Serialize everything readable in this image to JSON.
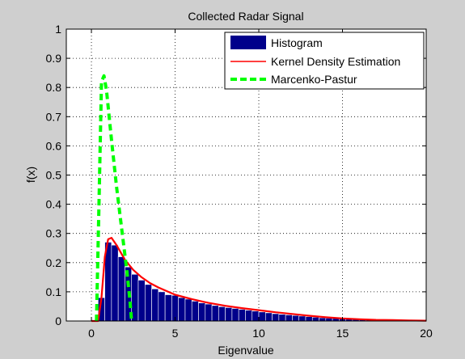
{
  "chart_data": {
    "type": "bar",
    "title": "Collected Radar Signal",
    "xlabel": "Eigenvalue",
    "ylabel": "f(x)",
    "xlim": [
      -1.5,
      20
    ],
    "ylim": [
      0,
      1
    ],
    "x_ticks": [
      0,
      5,
      10,
      15,
      20
    ],
    "x_tick_labels": [
      "0",
      "5",
      "10",
      "15",
      "20"
    ],
    "y_ticks": [
      0,
      0.1,
      0.2,
      0.3,
      0.4,
      0.5,
      0.6,
      0.7,
      0.8,
      0.9,
      1
    ],
    "y_tick_labels": [
      "0",
      "0.1",
      "0.2",
      "0.3",
      "0.4",
      "0.5",
      "0.6",
      "0.7",
      "0.8",
      "0.9",
      "1"
    ],
    "grid": true,
    "legend_position": "top-right",
    "series": [
      {
        "name": "Histogram",
        "kind": "histogram",
        "color": "#00008b",
        "bin_width": 0.4,
        "x": [
          0.6,
          1.0,
          1.4,
          1.8,
          2.2,
          2.6,
          3.0,
          3.4,
          3.8,
          4.2,
          4.6,
          5.0,
          5.4,
          5.8,
          6.2,
          6.6,
          7.0,
          7.4,
          7.8,
          8.2,
          8.6,
          9.0,
          9.4,
          9.8,
          10.2,
          10.6,
          11.0,
          11.4,
          11.8,
          12.2,
          12.6,
          13.0,
          13.4,
          13.8,
          14.2,
          14.6,
          15.0,
          15.4,
          15.8,
          16.2,
          16.6,
          17.0,
          17.4,
          17.8,
          18.2,
          18.6,
          19.0,
          19.4,
          19.8
        ],
        "values": [
          0.08,
          0.27,
          0.26,
          0.22,
          0.185,
          0.16,
          0.14,
          0.125,
          0.11,
          0.1,
          0.09,
          0.088,
          0.08,
          0.075,
          0.068,
          0.062,
          0.058,
          0.053,
          0.049,
          0.046,
          0.043,
          0.04,
          0.037,
          0.034,
          0.031,
          0.028,
          0.025,
          0.023,
          0.021,
          0.019,
          0.017,
          0.015,
          0.013,
          0.011,
          0.01,
          0.009,
          0.008,
          0.007,
          0.006,
          0.005,
          0.005,
          0.004,
          0.004,
          0.003,
          0.003,
          0.002,
          0.002,
          0.002,
          0.001
        ]
      },
      {
        "name": "Kernel Density Estimation",
        "kind": "line",
        "color": "#ff0000",
        "x": [
          0,
          0.4,
          0.6,
          0.8,
          1.0,
          1.2,
          1.5,
          2.0,
          2.5,
          3.0,
          3.5,
          4.0,
          5.0,
          6.0,
          7.0,
          8.0,
          9.0,
          10.0,
          11.0,
          12.0,
          13.0,
          14.0,
          15.0,
          16.0,
          17.0,
          18.0,
          19.0,
          20.0
        ],
        "values": [
          0,
          0,
          0.08,
          0.22,
          0.28,
          0.285,
          0.26,
          0.21,
          0.175,
          0.15,
          0.13,
          0.115,
          0.09,
          0.075,
          0.062,
          0.052,
          0.044,
          0.037,
          0.03,
          0.024,
          0.018,
          0.013,
          0.009,
          0.006,
          0.004,
          0.003,
          0.002,
          0.001
        ]
      },
      {
        "name": "Marcenko-Pastur",
        "kind": "line",
        "style": "dashed",
        "color": "#00ff00",
        "x": [
          0.3,
          0.45,
          0.6,
          0.75,
          0.9,
          1.2,
          1.5,
          1.8,
          2.1,
          2.3,
          2.4
        ],
        "values": [
          0,
          0.4,
          0.82,
          0.84,
          0.79,
          0.62,
          0.46,
          0.32,
          0.18,
          0.07,
          0
        ]
      }
    ]
  }
}
